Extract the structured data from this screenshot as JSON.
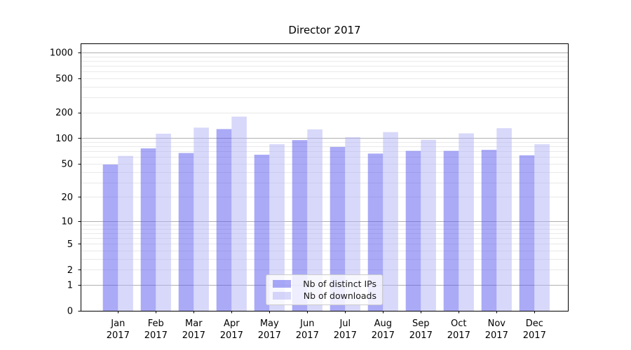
{
  "chart_data": {
    "type": "bar",
    "title": "Director 2017",
    "xlabel": "",
    "ylabel": "",
    "categories": [
      "Jan 2017",
      "Feb 2017",
      "Mar 2017",
      "Apr 2017",
      "May 2017",
      "Jun 2017",
      "Jul 2017",
      "Aug 2017",
      "Sep 2017",
      "Oct 2017",
      "Nov 2017",
      "Dec 2017"
    ],
    "series": [
      {
        "key": "distinct-ips",
        "name": "Nb of distinct IPs",
        "color_rgba": "rgba(85, 85, 240, 0.5)",
        "color_hex_on_white": "#aaaaf7",
        "values": [
          49,
          76,
          67,
          128,
          64,
          95,
          79,
          66,
          71,
          71,
          73,
          63
        ]
      },
      {
        "key": "downloads",
        "name": "Nb of downloads",
        "color_rgba": "rgba(177, 177, 246, 0.5)",
        "color_hex_on_white": "#d8d8fa",
        "values": [
          62,
          113,
          133,
          179,
          85,
          127,
          103,
          118,
          96,
          114,
          131,
          85
        ]
      }
    ],
    "y_axis": {
      "scale": "log(1+x)",
      "ylim": [
        0,
        1275
      ],
      "tick_values": [
        1000,
        500,
        200,
        100,
        50,
        20,
        10,
        5,
        2,
        1,
        0
      ],
      "tick_labels": [
        "1000",
        "500",
        "200",
        "100",
        "50",
        "20",
        "10",
        "5",
        "2",
        "1",
        "0"
      ],
      "major_gridline_values": [
        1,
        10,
        100,
        1000
      ],
      "minor_gridline_values": [
        2,
        3,
        4,
        5,
        6,
        7,
        8,
        9,
        20,
        30,
        40,
        50,
        60,
        70,
        80,
        90,
        200,
        300,
        400,
        500,
        600,
        700,
        800,
        900
      ]
    },
    "legend": {
      "position": "lower center"
    },
    "grid": true
  },
  "colors": {
    "background": "#ffffff",
    "major_grid": "#b0b0b0",
    "minor_grid": "#e9e9e9",
    "spine": "#000000",
    "tick": "#000000",
    "text": "#000000"
  }
}
